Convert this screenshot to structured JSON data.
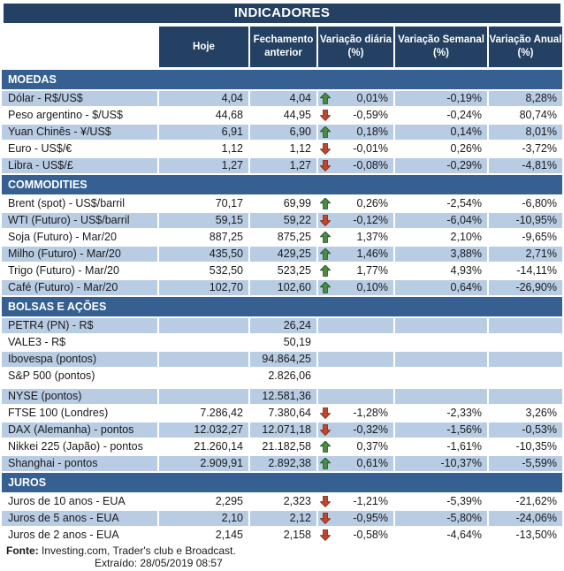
{
  "title": "INDICADORES",
  "columns": [
    "Hoje",
    "Fechamento\nanterior",
    "Variação diária\n(%)",
    "Variação Semanal\n(%)",
    "Variação Anual\n(%)"
  ],
  "colors": {
    "header_dark_blue": "#244062",
    "section_blue": "#366092",
    "row_shade_blue": "#b8cce4",
    "arrow_up_green": "#4f8b41",
    "arrow_up_outline": "#1f5c32",
    "arrow_down_red": "#c1462b",
    "arrow_down_outline": "#7e2b17"
  },
  "sections": [
    {
      "name": "MOEDAS",
      "rows": [
        {
          "label": "Dólar - R$/US$",
          "hoje": "4,04",
          "fechamento": "4,04",
          "dir": "up",
          "var_diaria": "0,01%",
          "var_semanal": "-0,19%",
          "var_anual": "8,28%",
          "shaded": true
        },
        {
          "label": "Peso argentino - $/US$",
          "hoje": "44,68",
          "fechamento": "44,95",
          "dir": "down",
          "var_diaria": "-0,59%",
          "var_semanal": "-0,24%",
          "var_anual": "80,74%",
          "shaded": false
        },
        {
          "label": "Yuan Chinês - ¥/US$",
          "hoje": "6,91",
          "fechamento": "6,90",
          "dir": "up",
          "var_diaria": "0,18%",
          "var_semanal": "0,14%",
          "var_anual": "8,01%",
          "shaded": true
        },
        {
          "label": "Euro - US$/€",
          "hoje": "1,12",
          "fechamento": "1,12",
          "dir": "down",
          "var_diaria": "-0,01%",
          "var_semanal": "0,26%",
          "var_anual": "-3,72%",
          "shaded": false
        },
        {
          "label": "Libra - US$/£",
          "hoje": "1,27",
          "fechamento": "1,27",
          "dir": "down",
          "var_diaria": "-0,08%",
          "var_semanal": "-0,29%",
          "var_anual": "-4,81%",
          "shaded": true
        }
      ]
    },
    {
      "name": "COMMODITIES",
      "rows": [
        {
          "label": "Brent (spot) - US$/barril",
          "hoje": "70,17",
          "fechamento": "69,99",
          "dir": "up",
          "var_diaria": "0,26%",
          "var_semanal": "-2,54%",
          "var_anual": "-6,80%",
          "shaded": false
        },
        {
          "label": "WTI (Futuro) - US$/barril",
          "hoje": "59,15",
          "fechamento": "59,22",
          "dir": "down",
          "var_diaria": "-0,12%",
          "var_semanal": "-6,04%",
          "var_anual": "-10,95%",
          "shaded": true
        },
        {
          "label": "Soja (Futuro) - Mar/20",
          "hoje": "887,25",
          "fechamento": "875,25",
          "dir": "up",
          "var_diaria": "1,37%",
          "var_semanal": "2,10%",
          "var_anual": "-9,65%",
          "shaded": false
        },
        {
          "label": "Milho (Futuro) - Mar/20",
          "hoje": "435,50",
          "fechamento": "429,25",
          "dir": "up",
          "var_diaria": "1,46%",
          "var_semanal": "3,88%",
          "var_anual": "2,71%",
          "shaded": true
        },
        {
          "label": "Trigo (Futuro) - Mar/20",
          "hoje": "532,50",
          "fechamento": "523,25",
          "dir": "up",
          "var_diaria": "1,77%",
          "var_semanal": "4,93%",
          "var_anual": "-14,11%",
          "shaded": false
        },
        {
          "label": "Café (Futuro) - Mar/20",
          "hoje": "102,70",
          "fechamento": "102,60",
          "dir": "up",
          "var_diaria": "0,10%",
          "var_semanal": "0,64%",
          "var_anual": "-26,90%",
          "shaded": true
        }
      ]
    },
    {
      "name": "BOLSAS E AÇÕES",
      "rows": [
        {
          "label": "PETR4 (PN) - R$",
          "hoje": "",
          "fechamento": "26,24",
          "dir": "",
          "var_diaria": "",
          "var_semanal": "",
          "var_anual": "",
          "shaded": true
        },
        {
          "label": "VALE3 - R$",
          "hoje": "",
          "fechamento": "50,19",
          "dir": "",
          "var_diaria": "",
          "var_semanal": "",
          "var_anual": "",
          "shaded": false
        },
        {
          "label": "Ibovespa (pontos)",
          "hoje": "",
          "fechamento": "94.864,25",
          "dir": "",
          "var_diaria": "",
          "var_semanal": "",
          "var_anual": "",
          "shaded": true
        },
        {
          "label": "S&P 500 (pontos)",
          "hoje": "",
          "fechamento": "2.826,06",
          "dir": "",
          "var_diaria": "",
          "var_semanal": "",
          "var_anual": "",
          "shaded": false,
          "spacer_after": true
        },
        {
          "label": "NYSE (pontos)",
          "hoje": "",
          "fechamento": "12.581,36",
          "dir": "",
          "var_diaria": "",
          "var_semanal": "",
          "var_anual": "",
          "shaded": true
        },
        {
          "label": "FTSE 100 (Londres)",
          "hoje": "7.286,42",
          "fechamento": "7.380,64",
          "dir": "down",
          "var_diaria": "-1,28%",
          "var_semanal": "-2,33%",
          "var_anual": "3,26%",
          "shaded": false
        },
        {
          "label": "DAX (Alemanha) - pontos",
          "hoje": "12.032,27",
          "fechamento": "12.071,18",
          "dir": "down",
          "var_diaria": "-0,32%",
          "var_semanal": "-1,56%",
          "var_anual": "-0,53%",
          "shaded": true
        },
        {
          "label": "Nikkei 225 (Japão) - pontos",
          "hoje": "21.260,14",
          "fechamento": "21.182,58",
          "dir": "up",
          "var_diaria": "0,37%",
          "var_semanal": "-1,61%",
          "var_anual": "-10,35%",
          "shaded": false
        },
        {
          "label": "Shanghai - pontos",
          "hoje": "2.909,91",
          "fechamento": "2.892,38",
          "dir": "up",
          "var_diaria": "0,61%",
          "var_semanal": "-10,37%",
          "var_anual": "-5,59%",
          "shaded": true
        }
      ]
    },
    {
      "name": "JUROS",
      "rows": [
        {
          "label": "Juros de 10 anos - EUA",
          "hoje": "2,295",
          "fechamento": "2,323",
          "dir": "down",
          "var_diaria": "-1,21%",
          "var_semanal": "-5,39%",
          "var_anual": "-21,62%",
          "shaded": false
        },
        {
          "label": "Juros de 5 anos - EUA",
          "hoje": "2,10",
          "fechamento": "2,12",
          "dir": "down",
          "var_diaria": "-0,95%",
          "var_semanal": "-5,80%",
          "var_anual": "-24,06%",
          "shaded": true
        },
        {
          "label": "Juros de 2 anos - EUA",
          "hoje": "2,145",
          "fechamento": "2,158",
          "dir": "down",
          "var_diaria": "-0,58%",
          "var_semanal": "-4,64%",
          "var_anual": "-13,50%",
          "shaded": false
        }
      ]
    }
  ],
  "footer": {
    "source_label": "Fonte:",
    "source_text": " Investing.com, Trader's club e Broadcast.",
    "extracted": "Extraído: 28/05/2019 08:57"
  }
}
